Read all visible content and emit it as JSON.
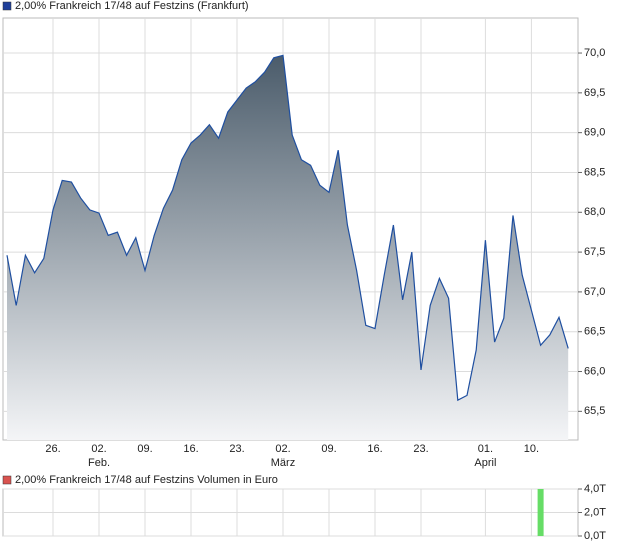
{
  "chart_data": [
    {
      "type": "area",
      "title": "2,00% Frankreich 17/48 auf Festzins (Frankfurt)",
      "legend_color": "#1f3f9a",
      "color": "#1f4fa0",
      "categories": [
        null,
        null,
        null,
        null,
        null,
        "26.",
        null,
        null,
        null,
        null,
        "02.",
        null,
        null,
        null,
        null,
        "09.",
        null,
        null,
        null,
        null,
        "16.",
        null,
        null,
        null,
        null,
        "23.",
        null,
        null,
        null,
        null,
        "02.",
        null,
        null,
        null,
        null,
        "09.",
        null,
        null,
        null,
        null,
        "16.",
        null,
        null,
        null,
        null,
        "23.",
        null,
        null,
        null,
        null,
        null,
        null,
        "01.",
        null,
        null,
        null,
        null,
        "10.",
        null,
        null,
        null,
        null
      ],
      "month_labels": [
        null,
        null,
        null,
        null,
        null,
        null,
        null,
        null,
        null,
        null,
        "Feb.",
        null,
        null,
        null,
        null,
        null,
        null,
        null,
        null,
        null,
        null,
        null,
        null,
        null,
        null,
        null,
        null,
        null,
        null,
        null,
        "März",
        null,
        null,
        null,
        null,
        null,
        null,
        null,
        null,
        null,
        null,
        null,
        null,
        null,
        null,
        null,
        null,
        null,
        null,
        null,
        null,
        null,
        "April",
        null,
        null,
        null,
        null,
        null,
        null,
        null,
        null,
        null
      ],
      "values": [
        67.46,
        66.83,
        67.46,
        67.24,
        67.42,
        68.03,
        68.4,
        68.38,
        68.18,
        68.03,
        67.99,
        67.71,
        67.75,
        67.46,
        67.68,
        67.27,
        67.71,
        68.05,
        68.28,
        68.66,
        68.87,
        68.97,
        69.1,
        68.93,
        69.26,
        69.41,
        69.56,
        69.64,
        69.76,
        69.94,
        69.97,
        68.97,
        68.66,
        68.59,
        68.34,
        68.25,
        68.78,
        67.84,
        67.27,
        66.58,
        66.54,
        67.21,
        67.84,
        66.9,
        67.5,
        66.02,
        66.83,
        67.17,
        66.92,
        65.64,
        65.7,
        66.27,
        67.65,
        66.37,
        66.67,
        67.96,
        67.21,
        66.77,
        66.33,
        66.46,
        66.68,
        66.29
      ],
      "ylim": [
        65.14,
        70.44
      ],
      "yticks": [
        {
          "value": 65.5,
          "label": "65,5"
        },
        {
          "value": 66,
          "label": "66,0"
        },
        {
          "value": 66.5,
          "label": "66,5"
        },
        {
          "value": 67,
          "label": "67,0"
        },
        {
          "value": 67.5,
          "label": "67,5"
        },
        {
          "value": 68,
          "label": "68,0"
        },
        {
          "value": 68.5,
          "label": "68,5"
        },
        {
          "value": 69,
          "label": "69,0"
        },
        {
          "value": 69.5,
          "label": "69,5"
        },
        {
          "value": 70,
          "label": "70,0"
        }
      ],
      "grid": true
    },
    {
      "type": "bar",
      "title": "2,00% Frankreich 17/48 auf Festzins Volumen in Euro",
      "legend_color": "#d9534f",
      "color": "#66dd66",
      "values": [
        0,
        0,
        0,
        0,
        0,
        0,
        0,
        0,
        0,
        0,
        0,
        0,
        0,
        0,
        0,
        0,
        0,
        0,
        0,
        0,
        0,
        0,
        0,
        0,
        0,
        0,
        0,
        0,
        0,
        0,
        0,
        0,
        0,
        0,
        0,
        0,
        0,
        0,
        0,
        0,
        0,
        0,
        0,
        0,
        0,
        0,
        0,
        0,
        0,
        0,
        0,
        0,
        0,
        0,
        0,
        0,
        0,
        0,
        4,
        0,
        0,
        0
      ],
      "ylim": [
        0,
        4
      ],
      "yticks": [
        {
          "value": 0,
          "label": "0,0T"
        },
        {
          "value": 2,
          "label": "2,0T"
        },
        {
          "value": 4,
          "label": "4,0T"
        }
      ],
      "grid": true
    }
  ]
}
